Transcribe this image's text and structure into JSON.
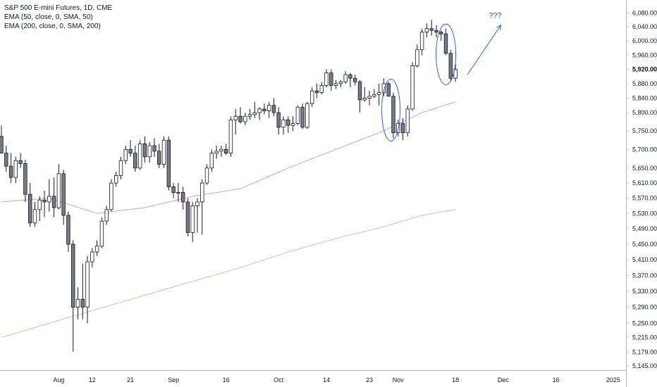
{
  "legend": {
    "title": "S&P 500 E-mini Futures, 1D, CME",
    "ema50": "EMA (50, close, 0, SMA, 50)",
    "ema200": "EMA (200, close, 0, SMA, 200)"
  },
  "annotation": {
    "text": "???"
  },
  "colors": {
    "candle_up_fill": "#ffffff",
    "candle_down_fill": "#787b86",
    "candle_border": "#131722",
    "ema50": "#d9a3a3",
    "ema200": "#a9d8a0",
    "annotation": "#2962ff",
    "axis_border": "#b2b5be",
    "text": "#131722"
  },
  "chart_data": {
    "type": "candlestick",
    "y_scale": "log",
    "ylim": [
      5140,
      6095
    ],
    "y_ticks": [
      "6,080.00",
      "6,040.00",
      "6,000.00",
      "5,960.00",
      "5,920.00",
      "5,880.00",
      "5,840.00",
      "5,800.00",
      "5,750.00",
      "5,700.00",
      "5,650.00",
      "5,610.00",
      "5,570.00",
      "5,530.00",
      "5,490.00",
      "5,450.00",
      "5,410.00",
      "5,370.00",
      "5,330.00",
      "5,290.00",
      "5,250.00",
      "5,215.00",
      "5,179.00",
      "5,145.00"
    ],
    "x_ticks": [
      "Aug",
      "12",
      "21",
      "Sep",
      "16",
      "Oct",
      "14",
      "23",
      "Nov",
      "18",
      "Dec",
      "16",
      "2025"
    ],
    "last_price_label": "5,920.00",
    "candles": [
      {
        "o": 5735,
        "h": 5765,
        "l": 5690,
        "c": 5690
      },
      {
        "o": 5690,
        "h": 5710,
        "l": 5640,
        "c": 5655
      },
      {
        "o": 5655,
        "h": 5690,
        "l": 5610,
        "c": 5625
      },
      {
        "o": 5625,
        "h": 5680,
        "l": 5610,
        "c": 5670
      },
      {
        "o": 5670,
        "h": 5690,
        "l": 5650,
        "c": 5662
      },
      {
        "o": 5662,
        "h": 5672,
        "l": 5560,
        "c": 5580
      },
      {
        "o": 5580,
        "h": 5610,
        "l": 5495,
        "c": 5505
      },
      {
        "o": 5505,
        "h": 5560,
        "l": 5495,
        "c": 5540
      },
      {
        "o": 5540,
        "h": 5575,
        "l": 5510,
        "c": 5565
      },
      {
        "o": 5565,
        "h": 5590,
        "l": 5520,
        "c": 5560
      },
      {
        "o": 5560,
        "h": 5620,
        "l": 5535,
        "c": 5575
      },
      {
        "o": 5575,
        "h": 5625,
        "l": 5520,
        "c": 5545
      },
      {
        "o": 5545,
        "h": 5660,
        "l": 5540,
        "c": 5635
      },
      {
        "o": 5635,
        "h": 5645,
        "l": 5500,
        "c": 5525
      },
      {
        "o": 5525,
        "h": 5535,
        "l": 5430,
        "c": 5450
      },
      {
        "o": 5450,
        "h": 5460,
        "l": 5180,
        "c": 5290
      },
      {
        "o": 5290,
        "h": 5340,
        "l": 5260,
        "c": 5310
      },
      {
        "o": 5310,
        "h": 5400,
        "l": 5260,
        "c": 5290
      },
      {
        "o": 5290,
        "h": 5420,
        "l": 5250,
        "c": 5405
      },
      {
        "o": 5405,
        "h": 5440,
        "l": 5390,
        "c": 5430
      },
      {
        "o": 5430,
        "h": 5460,
        "l": 5420,
        "c": 5445
      },
      {
        "o": 5445,
        "h": 5520,
        "l": 5440,
        "c": 5510
      },
      {
        "o": 5510,
        "h": 5550,
        "l": 5500,
        "c": 5540
      },
      {
        "o": 5540,
        "h": 5620,
        "l": 5535,
        "c": 5610
      },
      {
        "o": 5610,
        "h": 5640,
        "l": 5600,
        "c": 5630
      },
      {
        "o": 5630,
        "h": 5680,
        "l": 5620,
        "c": 5670
      },
      {
        "o": 5670,
        "h": 5710,
        "l": 5660,
        "c": 5700
      },
      {
        "o": 5700,
        "h": 5725,
        "l": 5680,
        "c": 5690
      },
      {
        "o": 5690,
        "h": 5710,
        "l": 5640,
        "c": 5650
      },
      {
        "o": 5650,
        "h": 5725,
        "l": 5645,
        "c": 5715
      },
      {
        "o": 5715,
        "h": 5735,
        "l": 5665,
        "c": 5680
      },
      {
        "o": 5680,
        "h": 5720,
        "l": 5665,
        "c": 5710
      },
      {
        "o": 5710,
        "h": 5730,
        "l": 5680,
        "c": 5695
      },
      {
        "o": 5695,
        "h": 5715,
        "l": 5650,
        "c": 5660
      },
      {
        "o": 5660,
        "h": 5735,
        "l": 5650,
        "c": 5725
      },
      {
        "o": 5725,
        "h": 5735,
        "l": 5590,
        "c": 5600
      },
      {
        "o": 5600,
        "h": 5610,
        "l": 5570,
        "c": 5585
      },
      {
        "o": 5585,
        "h": 5610,
        "l": 5560,
        "c": 5585
      },
      {
        "o": 5585,
        "h": 5600,
        "l": 5540,
        "c": 5560
      },
      {
        "o": 5560,
        "h": 5570,
        "l": 5470,
        "c": 5480
      },
      {
        "o": 5480,
        "h": 5560,
        "l": 5455,
        "c": 5550
      },
      {
        "o": 5550,
        "h": 5570,
        "l": 5480,
        "c": 5560
      },
      {
        "o": 5560,
        "h": 5620,
        "l": 5475,
        "c": 5610
      },
      {
        "o": 5610,
        "h": 5660,
        "l": 5605,
        "c": 5650
      },
      {
        "o": 5650,
        "h": 5700,
        "l": 5640,
        "c": 5690
      },
      {
        "o": 5690,
        "h": 5710,
        "l": 5675,
        "c": 5695
      },
      {
        "o": 5695,
        "h": 5710,
        "l": 5680,
        "c": 5700
      },
      {
        "o": 5700,
        "h": 5715,
        "l": 5685,
        "c": 5690
      },
      {
        "o": 5690,
        "h": 5790,
        "l": 5680,
        "c": 5780
      },
      {
        "o": 5780,
        "h": 5810,
        "l": 5740,
        "c": 5790
      },
      {
        "o": 5790,
        "h": 5815,
        "l": 5770,
        "c": 5775
      },
      {
        "o": 5775,
        "h": 5800,
        "l": 5765,
        "c": 5790
      },
      {
        "o": 5790,
        "h": 5810,
        "l": 5780,
        "c": 5795
      },
      {
        "o": 5795,
        "h": 5830,
        "l": 5785,
        "c": 5800
      },
      {
        "o": 5800,
        "h": 5815,
        "l": 5780,
        "c": 5810
      },
      {
        "o": 5810,
        "h": 5825,
        "l": 5795,
        "c": 5805
      },
      {
        "o": 5805,
        "h": 5830,
        "l": 5785,
        "c": 5820
      },
      {
        "o": 5820,
        "h": 5840,
        "l": 5790,
        "c": 5800
      },
      {
        "o": 5800,
        "h": 5815,
        "l": 5740,
        "c": 5760
      },
      {
        "o": 5760,
        "h": 5790,
        "l": 5740,
        "c": 5780
      },
      {
        "o": 5780,
        "h": 5790,
        "l": 5745,
        "c": 5765
      },
      {
        "o": 5765,
        "h": 5790,
        "l": 5750,
        "c": 5770
      },
      {
        "o": 5770,
        "h": 5820,
        "l": 5765,
        "c": 5815
      },
      {
        "o": 5815,
        "h": 5825,
        "l": 5755,
        "c": 5760
      },
      {
        "o": 5760,
        "h": 5830,
        "l": 5755,
        "c": 5825
      },
      {
        "o": 5825,
        "h": 5870,
        "l": 5815,
        "c": 5860
      },
      {
        "o": 5860,
        "h": 5880,
        "l": 5840,
        "c": 5855
      },
      {
        "o": 5855,
        "h": 5885,
        "l": 5850,
        "c": 5875
      },
      {
        "o": 5875,
        "h": 5920,
        "l": 5870,
        "c": 5910
      },
      {
        "o": 5910,
        "h": 5920,
        "l": 5860,
        "c": 5875
      },
      {
        "o": 5875,
        "h": 5890,
        "l": 5865,
        "c": 5880
      },
      {
        "o": 5880,
        "h": 5890,
        "l": 5870,
        "c": 5885
      },
      {
        "o": 5885,
        "h": 5915,
        "l": 5880,
        "c": 5905
      },
      {
        "o": 5905,
        "h": 5910,
        "l": 5870,
        "c": 5895
      },
      {
        "o": 5895,
        "h": 5905,
        "l": 5875,
        "c": 5885
      },
      {
        "o": 5885,
        "h": 5890,
        "l": 5800,
        "c": 5835
      },
      {
        "o": 5835,
        "h": 5870,
        "l": 5830,
        "c": 5840
      },
      {
        "o": 5840,
        "h": 5860,
        "l": 5820,
        "c": 5845
      },
      {
        "o": 5845,
        "h": 5865,
        "l": 5840,
        "c": 5850
      },
      {
        "o": 5850,
        "h": 5880,
        "l": 5820,
        "c": 5855
      },
      {
        "o": 5855,
        "h": 5895,
        "l": 5845,
        "c": 5880
      },
      {
        "o": 5880,
        "h": 5885,
        "l": 5850,
        "c": 5845
      },
      {
        "o": 5845,
        "h": 5855,
        "l": 5730,
        "c": 5745
      },
      {
        "o": 5745,
        "h": 5780,
        "l": 5735,
        "c": 5770
      },
      {
        "o": 5770,
        "h": 5785,
        "l": 5725,
        "c": 5745
      },
      {
        "o": 5745,
        "h": 5820,
        "l": 5735,
        "c": 5810
      },
      {
        "o": 5810,
        "h": 5940,
        "l": 5805,
        "c": 5930
      },
      {
        "o": 5930,
        "h": 5990,
        "l": 5925,
        "c": 5975
      },
      {
        "o": 5975,
        "h": 6035,
        "l": 5960,
        "c": 6025
      },
      {
        "o": 6025,
        "h": 6050,
        "l": 6010,
        "c": 6035
      },
      {
        "o": 6035,
        "h": 6060,
        "l": 6015,
        "c": 6030
      },
      {
        "o": 6030,
        "h": 6045,
        "l": 6010,
        "c": 6025
      },
      {
        "o": 6025,
        "h": 6030,
        "l": 6000,
        "c": 6020
      },
      {
        "o": 6020,
        "h": 6035,
        "l": 5960,
        "c": 5965
      },
      {
        "o": 5965,
        "h": 5975,
        "l": 5885,
        "c": 5895
      },
      {
        "o": 5895,
        "h": 5935,
        "l": 5885,
        "c": 5920
      }
    ],
    "ema50": [
      [
        0,
        5560
      ],
      [
        10,
        5570
      ],
      [
        20,
        5530
      ],
      [
        30,
        5545
      ],
      [
        40,
        5575
      ],
      [
        50,
        5595
      ],
      [
        60,
        5650
      ],
      [
        70,
        5700
      ],
      [
        80,
        5750
      ],
      [
        88,
        5800
      ],
      [
        95,
        5830
      ]
    ],
    "ema200": [
      [
        0,
        5215
      ],
      [
        10,
        5250
      ],
      [
        20,
        5285
      ],
      [
        30,
        5320
      ],
      [
        40,
        5355
      ],
      [
        50,
        5390
      ],
      [
        60,
        5430
      ],
      [
        70,
        5465
      ],
      [
        80,
        5495
      ],
      [
        88,
        5525
      ],
      [
        95,
        5540
      ]
    ]
  }
}
